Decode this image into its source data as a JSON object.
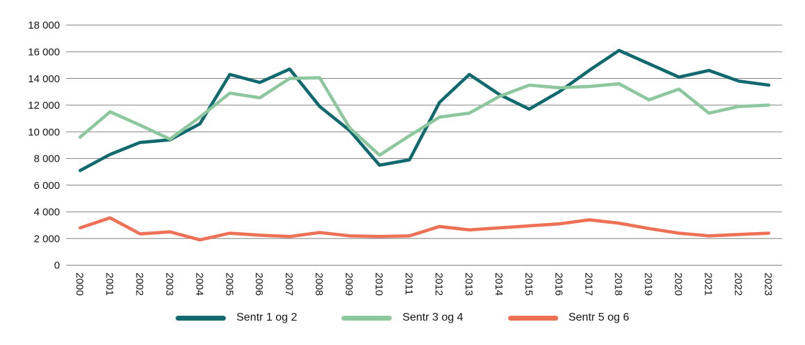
{
  "chart_data": {
    "type": "line",
    "x": [
      "2000",
      "2001",
      "2002",
      "2003",
      "2004",
      "2005",
      "2006",
      "2007",
      "2008",
      "2009",
      "2010",
      "2011",
      "2012",
      "2013",
      "2014",
      "2015",
      "2016",
      "2017",
      "2018",
      "2019",
      "2020",
      "2021",
      "2022",
      "2023"
    ],
    "series": [
      {
        "name": "Sentr 1 og 2",
        "color": "#0f696e",
        "values": [
          7100,
          8300,
          9200,
          9400,
          10600,
          14300,
          13700,
          14700,
          11900,
          10100,
          7500,
          7900,
          12200,
          14300,
          12800,
          11700,
          13000,
          14600,
          16100,
          15100,
          14100,
          14600,
          13800,
          13500
        ]
      },
      {
        "name": "Sentr 3 og 4",
        "color": "#8cc79d",
        "values": [
          9600,
          11500,
          10500,
          9450,
          11100,
          12900,
          12550,
          14000,
          14050,
          10300,
          8250,
          9700,
          11100,
          11400,
          12650,
          13500,
          13300,
          13400,
          13600,
          12400,
          13200,
          11400,
          11900,
          12000
        ]
      },
      {
        "name": "Sentr 5 og 6",
        "color": "#ee7055",
        "values": [
          2800,
          3550,
          2350,
          2500,
          1900,
          2400,
          2250,
          2150,
          2450,
          2200,
          2150,
          2200,
          2900,
          2650,
          2800,
          2950,
          3100,
          3400,
          3150,
          2750,
          2400,
          2200,
          2300,
          2400
        ]
      }
    ],
    "title": "",
    "xlabel": "",
    "ylabel": "",
    "ylim": [
      0,
      18000
    ],
    "ytick_step": 2000,
    "ytick_labels": [
      "0",
      "2 000",
      "4 000",
      "6 000",
      "8 000",
      "10 000",
      "12 000",
      "14 000",
      "16 000",
      "18 000"
    ],
    "grid": true,
    "gridline_color": "#808080",
    "legend_position": "bottom"
  }
}
